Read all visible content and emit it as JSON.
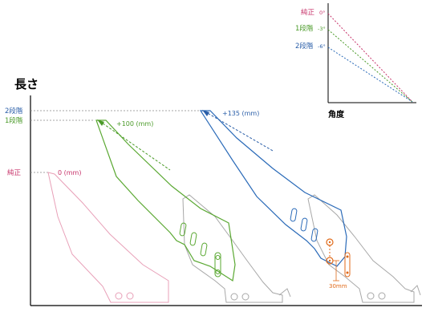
{
  "main": {
    "y_title": "長さ",
    "levels": [
      {
        "label": "2段階",
        "color": "#2a5ea8"
      },
      {
        "label": "1段階",
        "color": "#4a9a28"
      },
      {
        "label": "純正",
        "color": "#c7336a"
      }
    ],
    "annotations": {
      "stock": "0 (mm)",
      "step1": "+100 (mm)",
      "step2": "+135 (mm)",
      "slot": "30mm"
    }
  },
  "inset": {
    "x_title": "角度",
    "lines": [
      {
        "label": "純正",
        "angle": "0°",
        "color": "#c7336a"
      },
      {
        "label": "1段階",
        "angle": "-3°",
        "color": "#4a9a28"
      },
      {
        "label": "2段階",
        "angle": "-6°",
        "color": "#2a5ea8"
      }
    ]
  },
  "colors": {
    "stock": "#e8a0b8",
    "step1": "#5aa832",
    "step2": "#2a6ab8",
    "base": "#a8a8a8",
    "slot": "#e06a1a"
  }
}
